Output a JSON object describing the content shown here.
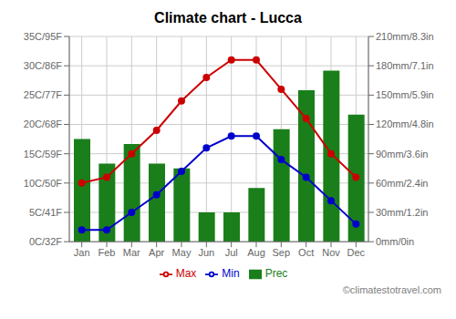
{
  "chart_data": {
    "type": "bar",
    "title": "Climate chart - Lucca",
    "categories": [
      "Jan",
      "Feb",
      "Mar",
      "Apr",
      "May",
      "Jun",
      "Jul",
      "Aug",
      "Sep",
      "Oct",
      "Nov",
      "Dec"
    ],
    "series": [
      {
        "name": "Prec",
        "type": "bar",
        "axis": "y2",
        "color": "#1a7f1a",
        "values": [
          105,
          80,
          100,
          80,
          75,
          30,
          30,
          55,
          115,
          155,
          175,
          130
        ]
      },
      {
        "name": "Min",
        "type": "line",
        "color": "#0000cc",
        "marker": "o",
        "values": [
          2,
          2,
          5,
          8,
          12,
          16,
          18,
          18,
          14,
          11,
          7,
          3
        ]
      },
      {
        "name": "Max",
        "type": "line",
        "color": "#cc0000",
        "marker": "o",
        "values": [
          10,
          11,
          15,
          19,
          24,
          28,
          31,
          31,
          26,
          21,
          15,
          11
        ]
      }
    ],
    "ylim": [
      0,
      35
    ],
    "yticks": [
      {
        "value": 0,
        "label": "0C/32F"
      },
      {
        "value": 5,
        "label": "5C/41F"
      },
      {
        "value": 10,
        "label": "10C/50F"
      },
      {
        "value": 15,
        "label": "15C/59F"
      },
      {
        "value": 20,
        "label": "20C/68F"
      },
      {
        "value": 25,
        "label": "25C/77F"
      },
      {
        "value": 30,
        "label": "30C/86F"
      },
      {
        "value": 35,
        "label": "35C/95F"
      }
    ],
    "y2lim": [
      0,
      210
    ],
    "y2ticks": [
      {
        "value": 0,
        "label": "0mm/0in"
      },
      {
        "value": 30,
        "label": "30mm/1.2in"
      },
      {
        "value": 60,
        "label": "60mm/2.4in"
      },
      {
        "value": 90,
        "label": "90mm/3.6in"
      },
      {
        "value": 120,
        "label": "120mm/4.8in"
      },
      {
        "value": 150,
        "label": "150mm/5.9in"
      },
      {
        "value": 180,
        "label": "180mm/7.1in"
      },
      {
        "value": 210,
        "label": "210mm/8.3in"
      }
    ],
    "grid": true,
    "legend": "bottom",
    "annotations": [
      "©climatestotravel.com"
    ]
  }
}
